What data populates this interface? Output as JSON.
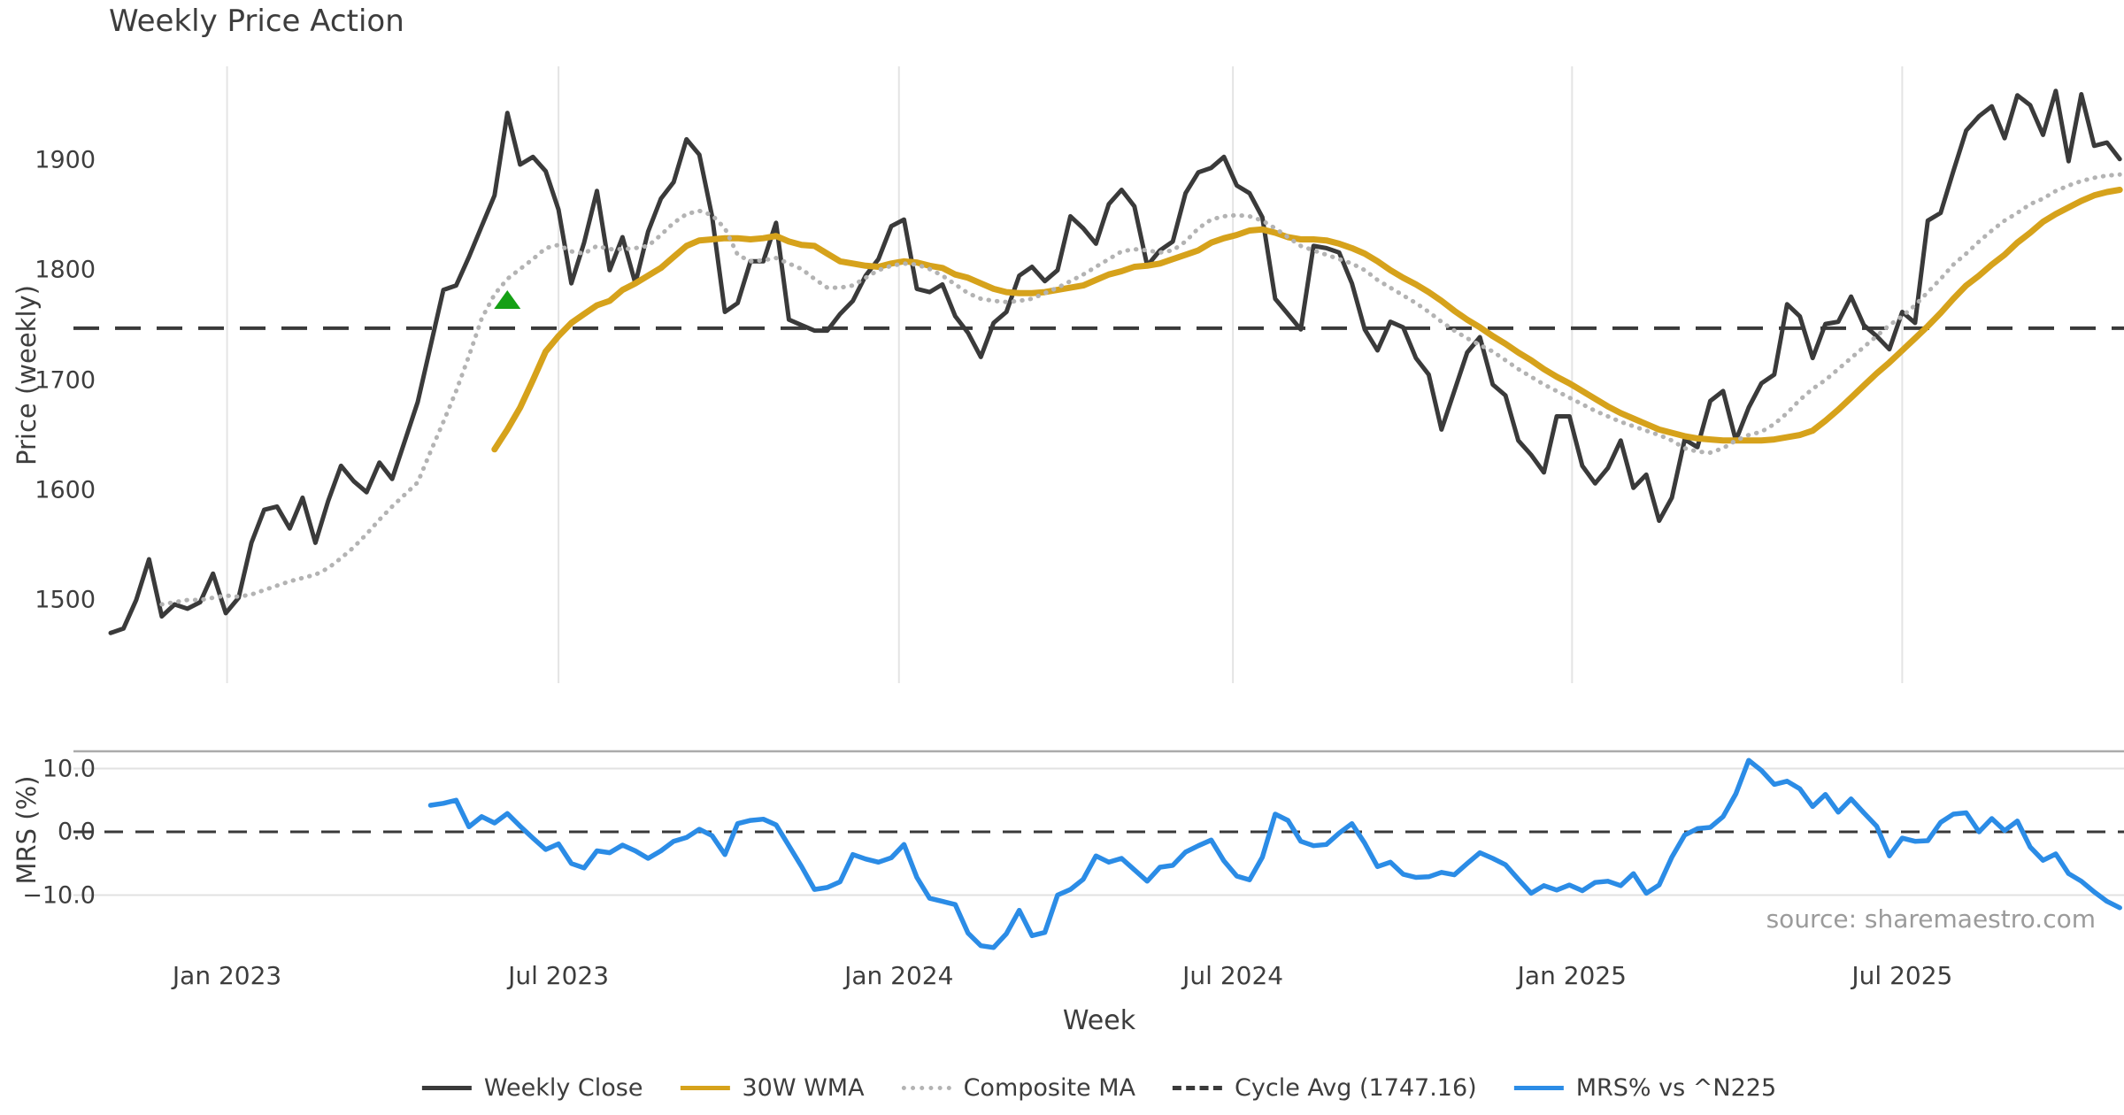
{
  "title": "Weekly Price Action",
  "source_note": "source: sharemaestro.com",
  "xlabel": "Week",
  "chart_data": {
    "type": "line",
    "title": "Weekly Price Action",
    "xlabel": "Week",
    "x_unit": "weekly index, week 0 = first plotted week (Nov 2022), 1 step = 1 week",
    "x_ticks": [
      {
        "label": "Jan 2023",
        "week": 9.1
      },
      {
        "label": "Jul 2023",
        "week": 35.0
      },
      {
        "label": "Jan 2024",
        "week": 61.6
      },
      {
        "label": "Jul 2024",
        "week": 87.7
      },
      {
        "label": "Jan 2025",
        "week": 114.2
      },
      {
        "label": "Jul 2025",
        "week": 140.0
      }
    ],
    "colors": {
      "grid": "#e4e4e4",
      "mrs_grid": "#e2e2e2",
      "mrs_top_spine": "#ababab",
      "close": "#3a3a3a",
      "wma": "#d6a21b",
      "composite": "#b3b3b3",
      "cycle": "#3a3a3a",
      "mrs": "#2b8ce6",
      "signal": "#15a015",
      "text": "#3d3d3d",
      "source_text": "#9b9b9b"
    },
    "panels": [
      {
        "id": "price",
        "ylabel": "Price (weekly)",
        "yticks": [
          1500,
          1600,
          1700,
          1800,
          1900
        ],
        "ylim": [
          1424,
          1985
        ],
        "cycle_avg": 1747.16,
        "signal_marker": {
          "shape": "triangle-up",
          "week": 31,
          "value": 1772
        },
        "series": [
          {
            "name": "Weekly Close",
            "style": "solid",
            "start_week": 0,
            "values": [
              1470,
              1474,
              1500,
              1537,
              1485,
              1496,
              1492,
              1498,
              1524,
              1488,
              1502,
              1552,
              1582,
              1585,
              1565,
              1593,
              1552,
              1590,
              1622,
              1608,
              1598,
              1625,
              1610,
              1645,
              1680,
              1731,
              1782,
              1786,
              1812,
              1840,
              1868,
              1943,
              1896,
              1903,
              1890,
              1855,
              1788,
              1825,
              1872,
              1800,
              1830,
              1788,
              1835,
              1865,
              1880,
              1919,
              1905,
              1849,
              1762,
              1770,
              1808,
              1808,
              1843,
              1755,
              1750,
              1745,
              1745,
              1760,
              1772,
              1795,
              1810,
              1840,
              1846,
              1783,
              1780,
              1787,
              1758,
              1743,
              1721,
              1752,
              1762,
              1795,
              1803,
              1790,
              1800,
              1849,
              1838,
              1824,
              1860,
              1873,
              1858,
              1804,
              1818,
              1826,
              1870,
              1889,
              1893,
              1903,
              1877,
              1870,
              1848,
              1774,
              1760,
              1746,
              1822,
              1820,
              1816,
              1788,
              1746,
              1727,
              1753,
              1748,
              1720,
              1705,
              1655,
              1690,
              1725,
              1739,
              1696,
              1686,
              1645,
              1632,
              1616,
              1667,
              1667,
              1622,
              1606,
              1620,
              1645,
              1602,
              1614,
              1572,
              1593,
              1646,
              1639,
              1681,
              1690,
              1645,
              1675,
              1697,
              1705,
              1769,
              1758,
              1720,
              1751,
              1753,
              1776,
              1750,
              1740,
              1728,
              1762,
              1752,
              1845,
              1852,
              1890,
              1927,
              1940,
              1949,
              1920,
              1959,
              1950,
              1923,
              1963,
              1899,
              1960,
              1913,
              1916,
              1901
            ]
          },
          {
            "name": "30W WMA",
            "style": "solid",
            "start_week": 30,
            "values": [
              1637,
              1655,
              1675,
              1700,
              1726,
              1740,
              1752,
              1760,
              1768,
              1772,
              1782,
              1788,
              1795,
              1802,
              1812,
              1822,
              1827,
              1828,
              1829,
              1829,
              1828,
              1829,
              1831,
              1826,
              1823,
              1822,
              1815,
              1808,
              1806,
              1804,
              1803,
              1806,
              1808,
              1807,
              1804,
              1802,
              1796,
              1793,
              1788,
              1783,
              1780,
              1779,
              1779,
              1780,
              1782,
              1784,
              1786,
              1791,
              1796,
              1799,
              1803,
              1804,
              1806,
              1810,
              1814,
              1818,
              1825,
              1829,
              1832,
              1836,
              1837,
              1834,
              1830,
              1828,
              1828,
              1827,
              1824,
              1820,
              1815,
              1808,
              1800,
              1793,
              1787,
              1780,
              1772,
              1763,
              1755,
              1748,
              1740,
              1733,
              1725,
              1718,
              1710,
              1703,
              1697,
              1690,
              1683,
              1676,
              1670,
              1665,
              1660,
              1655,
              1652,
              1649,
              1647,
              1646,
              1645,
              1645,
              1645,
              1645,
              1646,
              1648,
              1650,
              1654,
              1663,
              1673,
              1684,
              1695,
              1706,
              1716,
              1727,
              1738,
              1749,
              1761,
              1774,
              1786,
              1795,
              1805,
              1814,
              1825,
              1834,
              1844,
              1851,
              1857,
              1863,
              1868,
              1871,
              1873
            ]
          },
          {
            "name": "Composite MA",
            "style": "dotted",
            "start_week": 4,
            "values": [
              1496,
              1498,
              1500,
              1500,
              1502,
              1504,
              1503,
              1505,
              1509,
              1513,
              1517,
              1520,
              1523,
              1529,
              1538,
              1548,
              1560,
              1573,
              1585,
              1596,
              1607,
              1635,
              1662,
              1690,
              1722,
              1756,
              1778,
              1792,
              1801,
              1810,
              1820,
              1823,
              1817,
              1815,
              1822,
              1819,
              1819,
              1820,
              1822,
              1832,
              1843,
              1851,
              1854,
              1850,
              1838,
              1814,
              1808,
              1809,
              1811,
              1806,
              1801,
              1792,
              1784,
              1784,
              1786,
              1793,
              1800,
              1804,
              1806,
              1805,
              1801,
              1795,
              1787,
              1779,
              1774,
              1772,
              1771,
              1772,
              1774,
              1779,
              1784,
              1790,
              1796,
              1803,
              1810,
              1817,
              1819,
              1818,
              1816,
              1818,
              1826,
              1838,
              1846,
              1849,
              1850,
              1849,
              1845,
              1838,
              1830,
              1822,
              1818,
              1814,
              1810,
              1806,
              1800,
              1791,
              1784,
              1777,
              1770,
              1762,
              1753,
              1745,
              1738,
              1732,
              1726,
              1718,
              1710,
              1703,
              1696,
              1690,
              1684,
              1678,
              1672,
              1667,
              1662,
              1658,
              1654,
              1650,
              1645,
              1638,
              1635,
              1634,
              1638,
              1645,
              1650,
              1653,
              1660,
              1670,
              1682,
              1692,
              1700,
              1710,
              1720,
              1730,
              1740,
              1750,
              1758,
              1768,
              1780,
              1792,
              1805,
              1815,
              1826,
              1836,
              1845,
              1852,
              1860,
              1865,
              1872,
              1877,
              1881,
              1884,
              1886,
              1887
            ]
          },
          {
            "name": "Cycle Avg",
            "style": "dashed",
            "constant": 1747.16
          }
        ]
      },
      {
        "id": "mrs",
        "ylabel": "MRS (%)",
        "yticks": [
          {
            "value": 10,
            "label": "10.0"
          },
          {
            "value": 0,
            "label": "0.0"
          },
          {
            "value": -10,
            "label": "−10.0"
          }
        ],
        "ylim": [
          -18.8,
          12.7
        ],
        "zero_line": "dashed",
        "series": [
          {
            "name": "MRS% vs ^N225",
            "style": "solid",
            "start_week": 25,
            "values": [
              4.2,
              4.5,
              5.0,
              0.8,
              2.4,
              1.4,
              2.9,
              0.9,
              -1.0,
              -2.8,
              -1.9,
              -5.0,
              -5.7,
              -3.0,
              -3.3,
              -2.1,
              -3.0,
              -4.2,
              -3.0,
              -1.5,
              -0.9,
              0.4,
              -0.6,
              -3.6,
              1.3,
              1.8,
              2.0,
              1.1,
              -2.2,
              -5.5,
              -9.1,
              -8.8,
              -7.9,
              -3.6,
              -4.3,
              -4.8,
              -4.1,
              -2.0,
              -7.2,
              -10.5,
              -11.0,
              -11.5,
              -16.0,
              -18.0,
              -18.3,
              -16.1,
              -12.4,
              -16.4,
              -15.9,
              -10.0,
              -9.1,
              -7.5,
              -3.8,
              -4.8,
              -4.2,
              -6.0,
              -7.8,
              -5.6,
              -5.3,
              -3.2,
              -2.2,
              -1.3,
              -4.6,
              -7.0,
              -7.6,
              -4.0,
              2.8,
              1.8,
              -1.5,
              -2.2,
              -2.0,
              -0.2,
              1.3,
              -1.8,
              -5.5,
              -4.8,
              -6.7,
              -7.2,
              -7.1,
              -6.4,
              -6.8,
              -5.0,
              -3.3,
              -4.2,
              -5.2,
              -7.5,
              -9.7,
              -8.5,
              -9.2,
              -8.4,
              -9.3,
              -8.0,
              -7.8,
              -8.5,
              -6.6,
              -9.7,
              -8.4,
              -4.0,
              -0.5,
              0.5,
              0.7,
              2.4,
              6.0,
              11.3,
              9.7,
              7.5,
              8.0,
              6.8,
              4.0,
              5.9,
              3.1,
              5.2,
              3.0,
              0.9,
              -3.8,
              -1.0,
              -1.5,
              -1.4,
              1.5,
              2.8,
              3.0,
              0.0,
              2.1,
              0.2,
              1.7,
              -2.4,
              -4.5,
              -3.5,
              -6.6,
              -7.8,
              -9.5,
              -11.0,
              -12.0
            ]
          }
        ]
      }
    ],
    "legend": [
      {
        "label": "Weekly Close",
        "style": "solid",
        "color": "#3a3a3a"
      },
      {
        "label": "30W WMA",
        "style": "solid",
        "color": "#d6a21b"
      },
      {
        "label": "Composite MA",
        "style": "dotted",
        "color": "#b3b3b3"
      },
      {
        "label": "Cycle Avg (1747.16)",
        "style": "dashed",
        "color": "#3a3a3a"
      },
      {
        "label": "MRS% vs ^N225",
        "style": "solid",
        "color": "#2b8ce6"
      }
    ],
    "legend_position": "bottom-center",
    "grid": "vertical gridlines on price panel at date ticks; horizontal gridlines at ±10 on MRS panel"
  }
}
